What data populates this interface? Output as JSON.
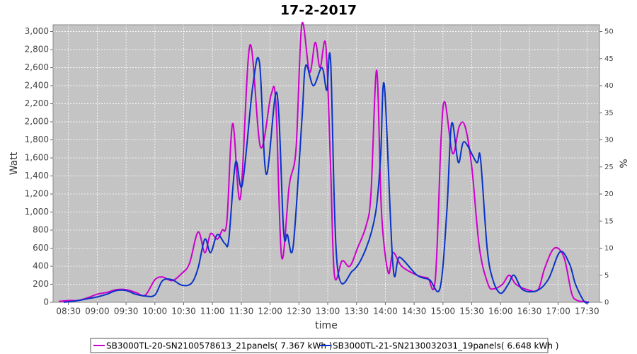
{
  "chart_data": {
    "type": "line",
    "title": "17-2-2017",
    "xlabel": "time",
    "ylabel": "Watt",
    "y2label": "%",
    "xlim": [
      "08:14",
      "17:43"
    ],
    "xticks": [
      "08:30",
      "09:00",
      "09:30",
      "10:00",
      "10:30",
      "11:00",
      "11:30",
      "12:00",
      "12:30",
      "13:00",
      "13:30",
      "14:00",
      "14:30",
      "15:00",
      "15:30",
      "16:00",
      "16:30",
      "17:00",
      "17:30"
    ],
    "ylim": [
      0,
      3075
    ],
    "yticks": [
      0,
      200,
      400,
      600,
      800,
      {
        "value": 1000,
        "label": "1,000"
      },
      {
        "value": 1200,
        "label": "1,200"
      },
      {
        "value": 1400,
        "label": "1,400"
      },
      {
        "value": 1600,
        "label": "1,600"
      },
      {
        "value": 1800,
        "label": "1,800"
      },
      {
        "value": 2000,
        "label": "2,000"
      },
      {
        "value": 2200,
        "label": "2,200"
      },
      {
        "value": 2400,
        "label": "2,400"
      },
      {
        "value": 2600,
        "label": "2,600"
      },
      {
        "value": 2800,
        "label": "2,800"
      },
      {
        "value": 3000,
        "label": "3,000"
      }
    ],
    "y2lim": [
      0,
      51.25
    ],
    "y2ticks": [
      0,
      5,
      10,
      15,
      20,
      25,
      30,
      35,
      40,
      45,
      50
    ],
    "grid": true,
    "legend": "bottom",
    "series": [
      {
        "name": "SB3000TL-20-SN2100578613_21panels( 7.367 kWh )",
        "color": "#cc00cc",
        "x": [
          "08:20",
          "08:30",
          "08:40",
          "08:50",
          "09:00",
          "09:10",
          "09:20",
          "09:30",
          "09:40",
          "09:50",
          "10:00",
          "10:08",
          "10:18",
          "10:28",
          "10:36",
          "10:45",
          "10:52",
          "10:58",
          "11:05",
          "11:10",
          "11:15",
          "11:21",
          "11:29",
          "11:39",
          "11:50",
          "12:01",
          "12:06",
          "12:12",
          "12:20",
          "12:27",
          "12:33",
          "12:41",
          "12:47",
          "12:52",
          "12:58",
          "13:03",
          "13:07",
          "13:15",
          "13:23",
          "13:31",
          "13:40",
          "13:45",
          "13:51",
          "13:56",
          "14:03",
          "14:08",
          "14:17",
          "14:33",
          "14:44",
          "14:52",
          "14:58",
          "15:02",
          "15:10",
          "15:17",
          "15:23",
          "15:30",
          "15:38",
          "15:47",
          "15:53",
          "16:02",
          "16:09",
          "16:16",
          "16:28",
          "16:39",
          "16:46",
          "16:56",
          "17:06",
          "17:14",
          "17:20",
          "17:27",
          "17:32"
        ],
        "values": [
          10,
          20,
          20,
          50,
          90,
          110,
          140,
          140,
          110,
          80,
          250,
          280,
          240,
          320,
          430,
          780,
          550,
          760,
          700,
          800,
          900,
          1980,
          1150,
          2850,
          1720,
          2300,
          2200,
          500,
          1300,
          1700,
          3080,
          2550,
          2880,
          2600,
          2850,
          1500,
          300,
          460,
          400,
          600,
          850,
          1200,
          2570,
          1000,
          330,
          550,
          400,
          300,
          270,
          250,
          1800,
          2220,
          1650,
          1950,
          1950,
          1500,
          600,
          200,
          150,
          200,
          300,
          200,
          140,
          140,
          380,
          600,
          500,
          100,
          20,
          10,
          0
        ]
      },
      {
        "name": "SB3000TL-21-SN2130032031_19panels( 6.648 kWh )",
        "color": "#0a32c8",
        "x": [
          "08:25",
          "08:40",
          "08:50",
          "09:00",
          "09:10",
          "09:20",
          "09:30",
          "09:40",
          "09:50",
          "10:00",
          "10:08",
          "10:18",
          "10:28",
          "10:38",
          "10:45",
          "10:52",
          "10:58",
          "11:05",
          "11:13",
          "11:17",
          "11:24",
          "11:31",
          "11:42",
          "11:49",
          "11:56",
          "12:07",
          "12:14",
          "12:18",
          "12:24",
          "12:33",
          "12:37",
          "12:45",
          "12:54",
          "12:59",
          "13:03",
          "13:10",
          "13:26",
          "13:40",
          "13:50",
          "13:55",
          "13:59",
          "14:08",
          "14:15",
          "14:33",
          "14:46",
          "14:57",
          "15:04",
          "15:09",
          "15:16",
          "15:22",
          "15:35",
          "15:39",
          "15:46",
          "15:52",
          "16:00",
          "16:08",
          "16:14",
          "16:23",
          "16:38",
          "16:50",
          "17:02",
          "17:12",
          "17:18",
          "17:27",
          "17:32"
        ],
        "values": [
          0,
          20,
          40,
          60,
          90,
          130,
          130,
          90,
          70,
          80,
          240,
          250,
          190,
          210,
          380,
          700,
          550,
          750,
          650,
          700,
          1550,
          1300,
          2400,
          2650,
          1420,
          2320,
          800,
          750,
          620,
          2000,
          2620,
          2400,
          2600,
          2350,
          2670,
          400,
          350,
          600,
          1000,
          1600,
          2400,
          400,
          500,
          300,
          250,
          160,
          1000,
          1980,
          1550,
          1780,
          1550,
          1600,
          600,
          250,
          100,
          200,
          300,
          140,
          130,
          260,
          560,
          420,
          200,
          10,
          0
        ]
      }
    ]
  }
}
